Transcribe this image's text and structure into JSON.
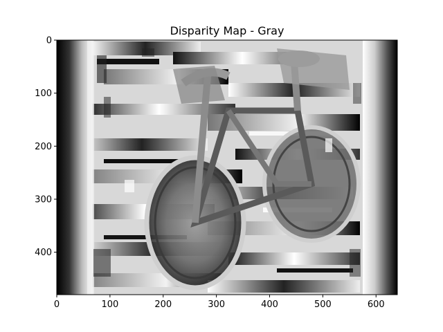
{
  "figure": {
    "title": "Disparity Map - Gray"
  },
  "image": {
    "description_name": "disparity-map",
    "colormap": "gray",
    "width": 640,
    "height": 480
  },
  "axes": {
    "x_ticks": [
      "0",
      "100",
      "200",
      "300",
      "400",
      "500",
      "600"
    ],
    "x_tick_values": [
      0,
      100,
      200,
      300,
      400,
      500,
      600
    ],
    "y_ticks": [
      "0",
      "100",
      "200",
      "300",
      "400"
    ],
    "y_tick_values": [
      0,
      100,
      200,
      300,
      400
    ],
    "xlim": [
      0,
      640
    ],
    "ylim": [
      480,
      0
    ],
    "frame_color": "#000000"
  }
}
